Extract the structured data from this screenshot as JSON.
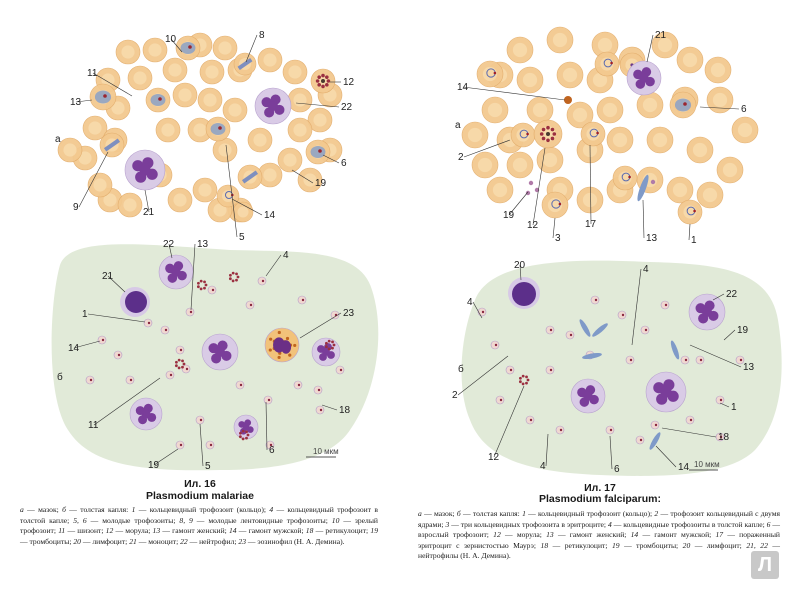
{
  "left": {
    "title": "Ил. 16",
    "subtitle": "Plasmodium malariae",
    "panel_a_label": "а",
    "panel_b_label": "б",
    "scale_label": "10 мкм",
    "smear_numbers": [
      "10",
      "8",
      "11",
      "12",
      "13",
      "22",
      "9",
      "21",
      "5",
      "14",
      "19",
      "6"
    ],
    "drop_numbers": [
      "22",
      "13",
      "4",
      "21",
      "1",
      "23",
      "14",
      "6",
      "11",
      "18",
      "19",
      "5",
      "6"
    ],
    "legend": [
      {
        "k": "а",
        "t": " — мазок; "
      },
      {
        "k": "б",
        "t": " — толстая капля: "
      },
      {
        "k": "1",
        "t": " — кольцевидный трофозоит (кольцо); "
      },
      {
        "k": "4",
        "t": " — кольцевидный трофозоит в толстой капле; "
      },
      {
        "k": "5, 6",
        "t": " — молодые трофозоиты; "
      },
      {
        "k": "8, 9",
        "t": " — молодые лентовидные трофозоиты; "
      },
      {
        "k": "10",
        "t": " — зрелый трофозоит; "
      },
      {
        "k": "11",
        "t": " — шизонт; "
      },
      {
        "k": "12",
        "t": " — морула; "
      },
      {
        "k": "13",
        "t": " — гамонт женский; "
      },
      {
        "k": "14",
        "t": " — гамонт мужской; "
      },
      {
        "k": "18",
        "t": " — ретикулоцит; "
      },
      {
        "k": "19",
        "t": " — тромбоциты; "
      },
      {
        "k": "20",
        "t": " — лимфоцит; "
      },
      {
        "k": "21",
        "t": " — моноцит; "
      },
      {
        "k": "22",
        "t": " — нейтрофил; "
      },
      {
        "k": "23",
        "t": " — эозинофил (Н. А. Демина)."
      }
    ]
  },
  "right": {
    "title": "Ил. 17",
    "subtitle": "Plasmodium falciparum:",
    "panel_a_label": "а",
    "panel_b_label": "б",
    "scale_label": "10 мкм",
    "smear_numbers": [
      "21",
      "14",
      "6",
      "2",
      "19",
      "12",
      "3",
      "17",
      "13",
      "1"
    ],
    "drop_numbers": [
      "20",
      "4",
      "4",
      "22",
      "19",
      "2",
      "13",
      "1",
      "18",
      "12",
      "4",
      "6",
      "14"
    ],
    "legend": [
      {
        "k": "а",
        "t": " — мазок; "
      },
      {
        "k": "б",
        "t": " — толстая капля: "
      },
      {
        "k": "1",
        "t": " — кольцевидный трофозоит (кольцо); "
      },
      {
        "k": "2",
        "t": " — трофозоит кольцевидный с двумя ядрами; "
      },
      {
        "k": "3",
        "t": " — три кольцевидных трофозоита в эритроците; "
      },
      {
        "k": "4",
        "t": " — кольцевидные трофозоиты в толстой капле; "
      },
      {
        "k": "6",
        "t": " — взрослый трофозоит; "
      },
      {
        "k": "12",
        "t": " — морула; "
      },
      {
        "k": "13",
        "t": " — гамонт женский; "
      },
      {
        "k": "14",
        "t": " — гамонт мужской; "
      },
      {
        "k": "17",
        "t": " — пораженный эритроцит с зернистостью Маурэ; "
      },
      {
        "k": "18",
        "t": " — ретикулоцит; "
      },
      {
        "k": "19",
        "t": " — тромбоциты; "
      },
      {
        "k": "20",
        "t": " — лимфоцит; "
      },
      {
        "k": "21, 22",
        "t": " — нейтрофилы (Н. А. Демина)."
      }
    ]
  },
  "logo": {
    "letter": "Л",
    "color": "#c8c8c8"
  },
  "colors": {
    "rbc": "#f3c98f",
    "rbc_edge": "#e3ad6c",
    "drop_bg": "#dfe9d6",
    "leukocyte": "#7a3d9a",
    "eosinophil": "#d99a3a"
  }
}
